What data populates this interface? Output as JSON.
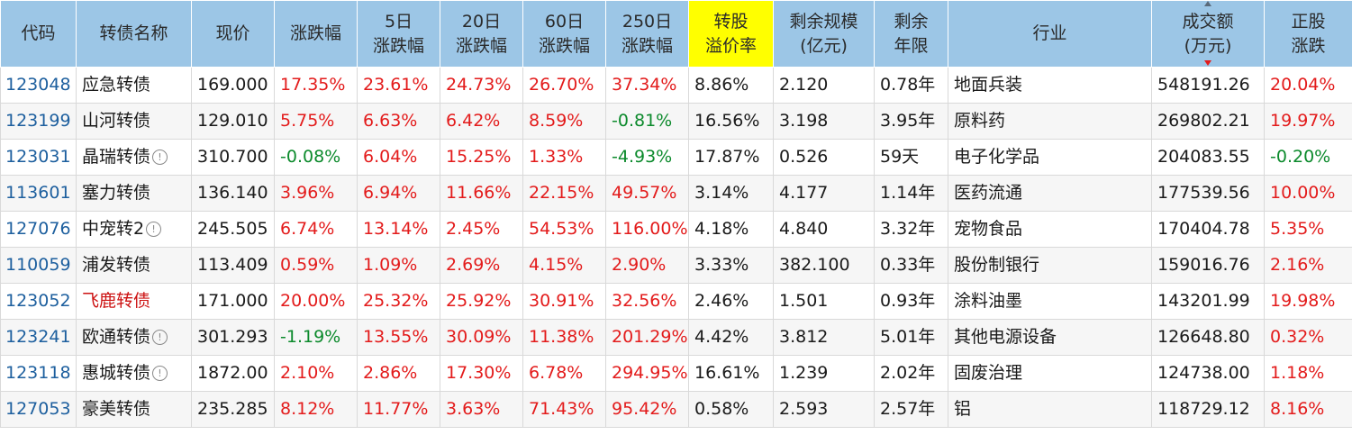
{
  "headers": [
    {
      "line1": "代码",
      "line2": ""
    },
    {
      "line1": "转债名称",
      "line2": ""
    },
    {
      "line1": "现价",
      "line2": ""
    },
    {
      "line1": "涨跌幅",
      "line2": ""
    },
    {
      "line1": "5日",
      "line2": "涨跌幅"
    },
    {
      "line1": "20日",
      "line2": "涨跌幅"
    },
    {
      "line1": "60日",
      "line2": "涨跌幅"
    },
    {
      "line1": "250日",
      "line2": "涨跌幅"
    },
    {
      "line1": "转股",
      "line2": "溢价率"
    },
    {
      "line1": "剩余规模",
      "line2": "(亿元)"
    },
    {
      "line1": "剩余",
      "line2": "年限"
    },
    {
      "line1": "行业",
      "line2": ""
    },
    {
      "line1": "成交额",
      "line2": "(万元)"
    },
    {
      "line1": "正股",
      "line2": "涨跌"
    }
  ],
  "colors": {
    "header_bg": "#9cc6e6",
    "highlight_header": "#ffff00",
    "positive": "#e31b1b",
    "negative": "#0c8a2c",
    "code_link": "#1d5f9e",
    "name_highlight": "#cc1111"
  },
  "rows": [
    {
      "code": "123048",
      "name": "应急转债",
      "info": false,
      "name_red": false,
      "price": "169.000",
      "chg": "17.35%",
      "chg5": "23.61%",
      "chg20": "24.73%",
      "chg60": "26.70%",
      "chg250": "37.34%",
      "premium": "8.86%",
      "scale": "2.120",
      "years": "0.78年",
      "industry": "地面兵装",
      "volume": "548191.26",
      "stock_chg": "20.04%"
    },
    {
      "code": "123199",
      "name": "山河转债",
      "info": false,
      "name_red": false,
      "price": "129.010",
      "chg": "5.75%",
      "chg5": "6.63%",
      "chg20": "6.42%",
      "chg60": "8.59%",
      "chg250": "-0.81%",
      "premium": "16.56%",
      "scale": "3.198",
      "years": "3.95年",
      "industry": "原料药",
      "volume": "269802.21",
      "stock_chg": "19.97%"
    },
    {
      "code": "123031",
      "name": "晶瑞转债",
      "info": true,
      "name_red": false,
      "price": "310.700",
      "chg": "-0.08%",
      "chg5": "6.04%",
      "chg20": "15.25%",
      "chg60": "1.33%",
      "chg250": "-4.93%",
      "premium": "17.87%",
      "scale": "0.526",
      "years": "59天",
      "industry": "电子化学品",
      "volume": "204083.55",
      "stock_chg": "-0.20%"
    },
    {
      "code": "113601",
      "name": "塞力转债",
      "info": false,
      "name_red": false,
      "price": "136.140",
      "chg": "3.96%",
      "chg5": "6.94%",
      "chg20": "11.66%",
      "chg60": "22.15%",
      "chg250": "49.57%",
      "premium": "3.14%",
      "scale": "4.177",
      "years": "1.14年",
      "industry": "医药流通",
      "volume": "177539.56",
      "stock_chg": "10.00%"
    },
    {
      "code": "127076",
      "name": "中宠转2",
      "info": true,
      "name_red": false,
      "price": "245.505",
      "chg": "6.74%",
      "chg5": "13.14%",
      "chg20": "2.45%",
      "chg60": "54.53%",
      "chg250": "116.00%",
      "premium": "4.18%",
      "scale": "4.840",
      "years": "3.32年",
      "industry": "宠物食品",
      "volume": "170404.78",
      "stock_chg": "5.35%"
    },
    {
      "code": "110059",
      "name": "浦发转债",
      "info": false,
      "name_red": false,
      "price": "113.409",
      "chg": "0.59%",
      "chg5": "1.09%",
      "chg20": "2.69%",
      "chg60": "4.15%",
      "chg250": "2.90%",
      "premium": "3.33%",
      "scale": "382.100",
      "years": "0.33年",
      "industry": "股份制银行",
      "volume": "159016.76",
      "stock_chg": "2.16%"
    },
    {
      "code": "123052",
      "name": "飞鹿转债",
      "info": false,
      "name_red": true,
      "price": "171.000",
      "chg": "20.00%",
      "chg5": "25.32%",
      "chg20": "25.92%",
      "chg60": "30.91%",
      "chg250": "32.56%",
      "premium": "2.46%",
      "scale": "1.501",
      "years": "0.93年",
      "industry": "涂料油墨",
      "volume": "143201.99",
      "stock_chg": "19.98%"
    },
    {
      "code": "123241",
      "name": "欧通转债",
      "info": true,
      "name_red": false,
      "price": "301.293",
      "chg": "-1.19%",
      "chg5": "13.55%",
      "chg20": "30.09%",
      "chg60": "11.38%",
      "chg250": "201.29%",
      "premium": "4.42%",
      "scale": "3.812",
      "years": "5.01年",
      "industry": "其他电源设备",
      "volume": "126648.80",
      "stock_chg": "0.32%"
    },
    {
      "code": "123118",
      "name": "惠城转债",
      "info": true,
      "name_red": false,
      "price": "1872.00",
      "chg": "2.10%",
      "chg5": "2.86%",
      "chg20": "17.30%",
      "chg60": "6.78%",
      "chg250": "294.95%",
      "premium": "16.61%",
      "scale": "1.239",
      "years": "2.02年",
      "industry": "固废治理",
      "volume": "124738.00",
      "stock_chg": "1.18%"
    },
    {
      "code": "127053",
      "name": "豪美转债",
      "info": false,
      "name_red": false,
      "price": "235.285",
      "chg": "8.12%",
      "chg5": "11.77%",
      "chg20": "3.63%",
      "chg60": "71.43%",
      "chg250": "95.42%",
      "premium": "0.58%",
      "scale": "2.593",
      "years": "2.57年",
      "industry": "铝",
      "volume": "118729.12",
      "stock_chg": "8.16%"
    }
  ]
}
